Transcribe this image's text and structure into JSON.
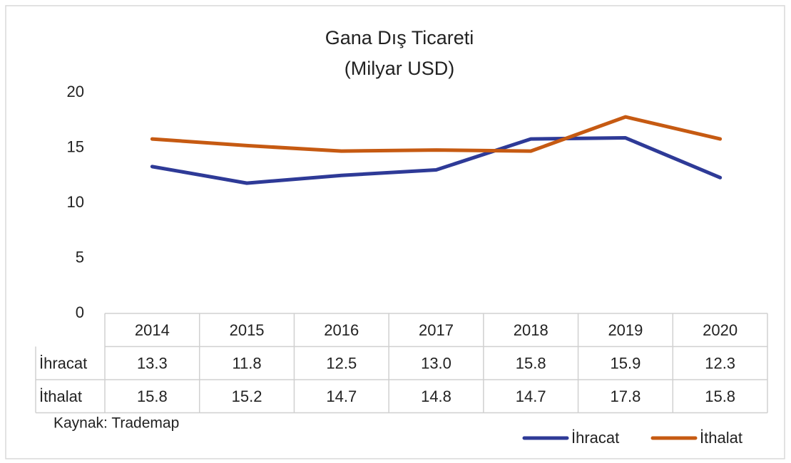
{
  "chart_data": {
    "type": "line",
    "title": "Gana Dış Ticareti",
    "subtitle": "(Milyar USD)",
    "categories": [
      "2014",
      "2015",
      "2016",
      "2017",
      "2018",
      "2019",
      "2020"
    ],
    "series": [
      {
        "name": "İhracat",
        "color": "#2e3a97",
        "values": [
          13.3,
          11.8,
          12.5,
          13.0,
          15.8,
          15.9,
          12.3
        ],
        "value_labels": [
          "13.3",
          "11.8",
          "12.5",
          "13.0",
          "15.8",
          "15.9",
          "12.3"
        ]
      },
      {
        "name": "İthalat",
        "color": "#c65a12",
        "values": [
          15.8,
          15.2,
          14.7,
          14.8,
          14.7,
          17.8,
          15.8
        ],
        "value_labels": [
          "15.8",
          "15.2",
          "14.7",
          "14.8",
          "14.7",
          "17.8",
          "15.8"
        ]
      }
    ],
    "ylim": [
      0,
      20
    ],
    "yticks": [
      0,
      5,
      10,
      15,
      20
    ],
    "grid": false,
    "source": "Kaynak: Trademap",
    "legend": "bottom-right"
  }
}
